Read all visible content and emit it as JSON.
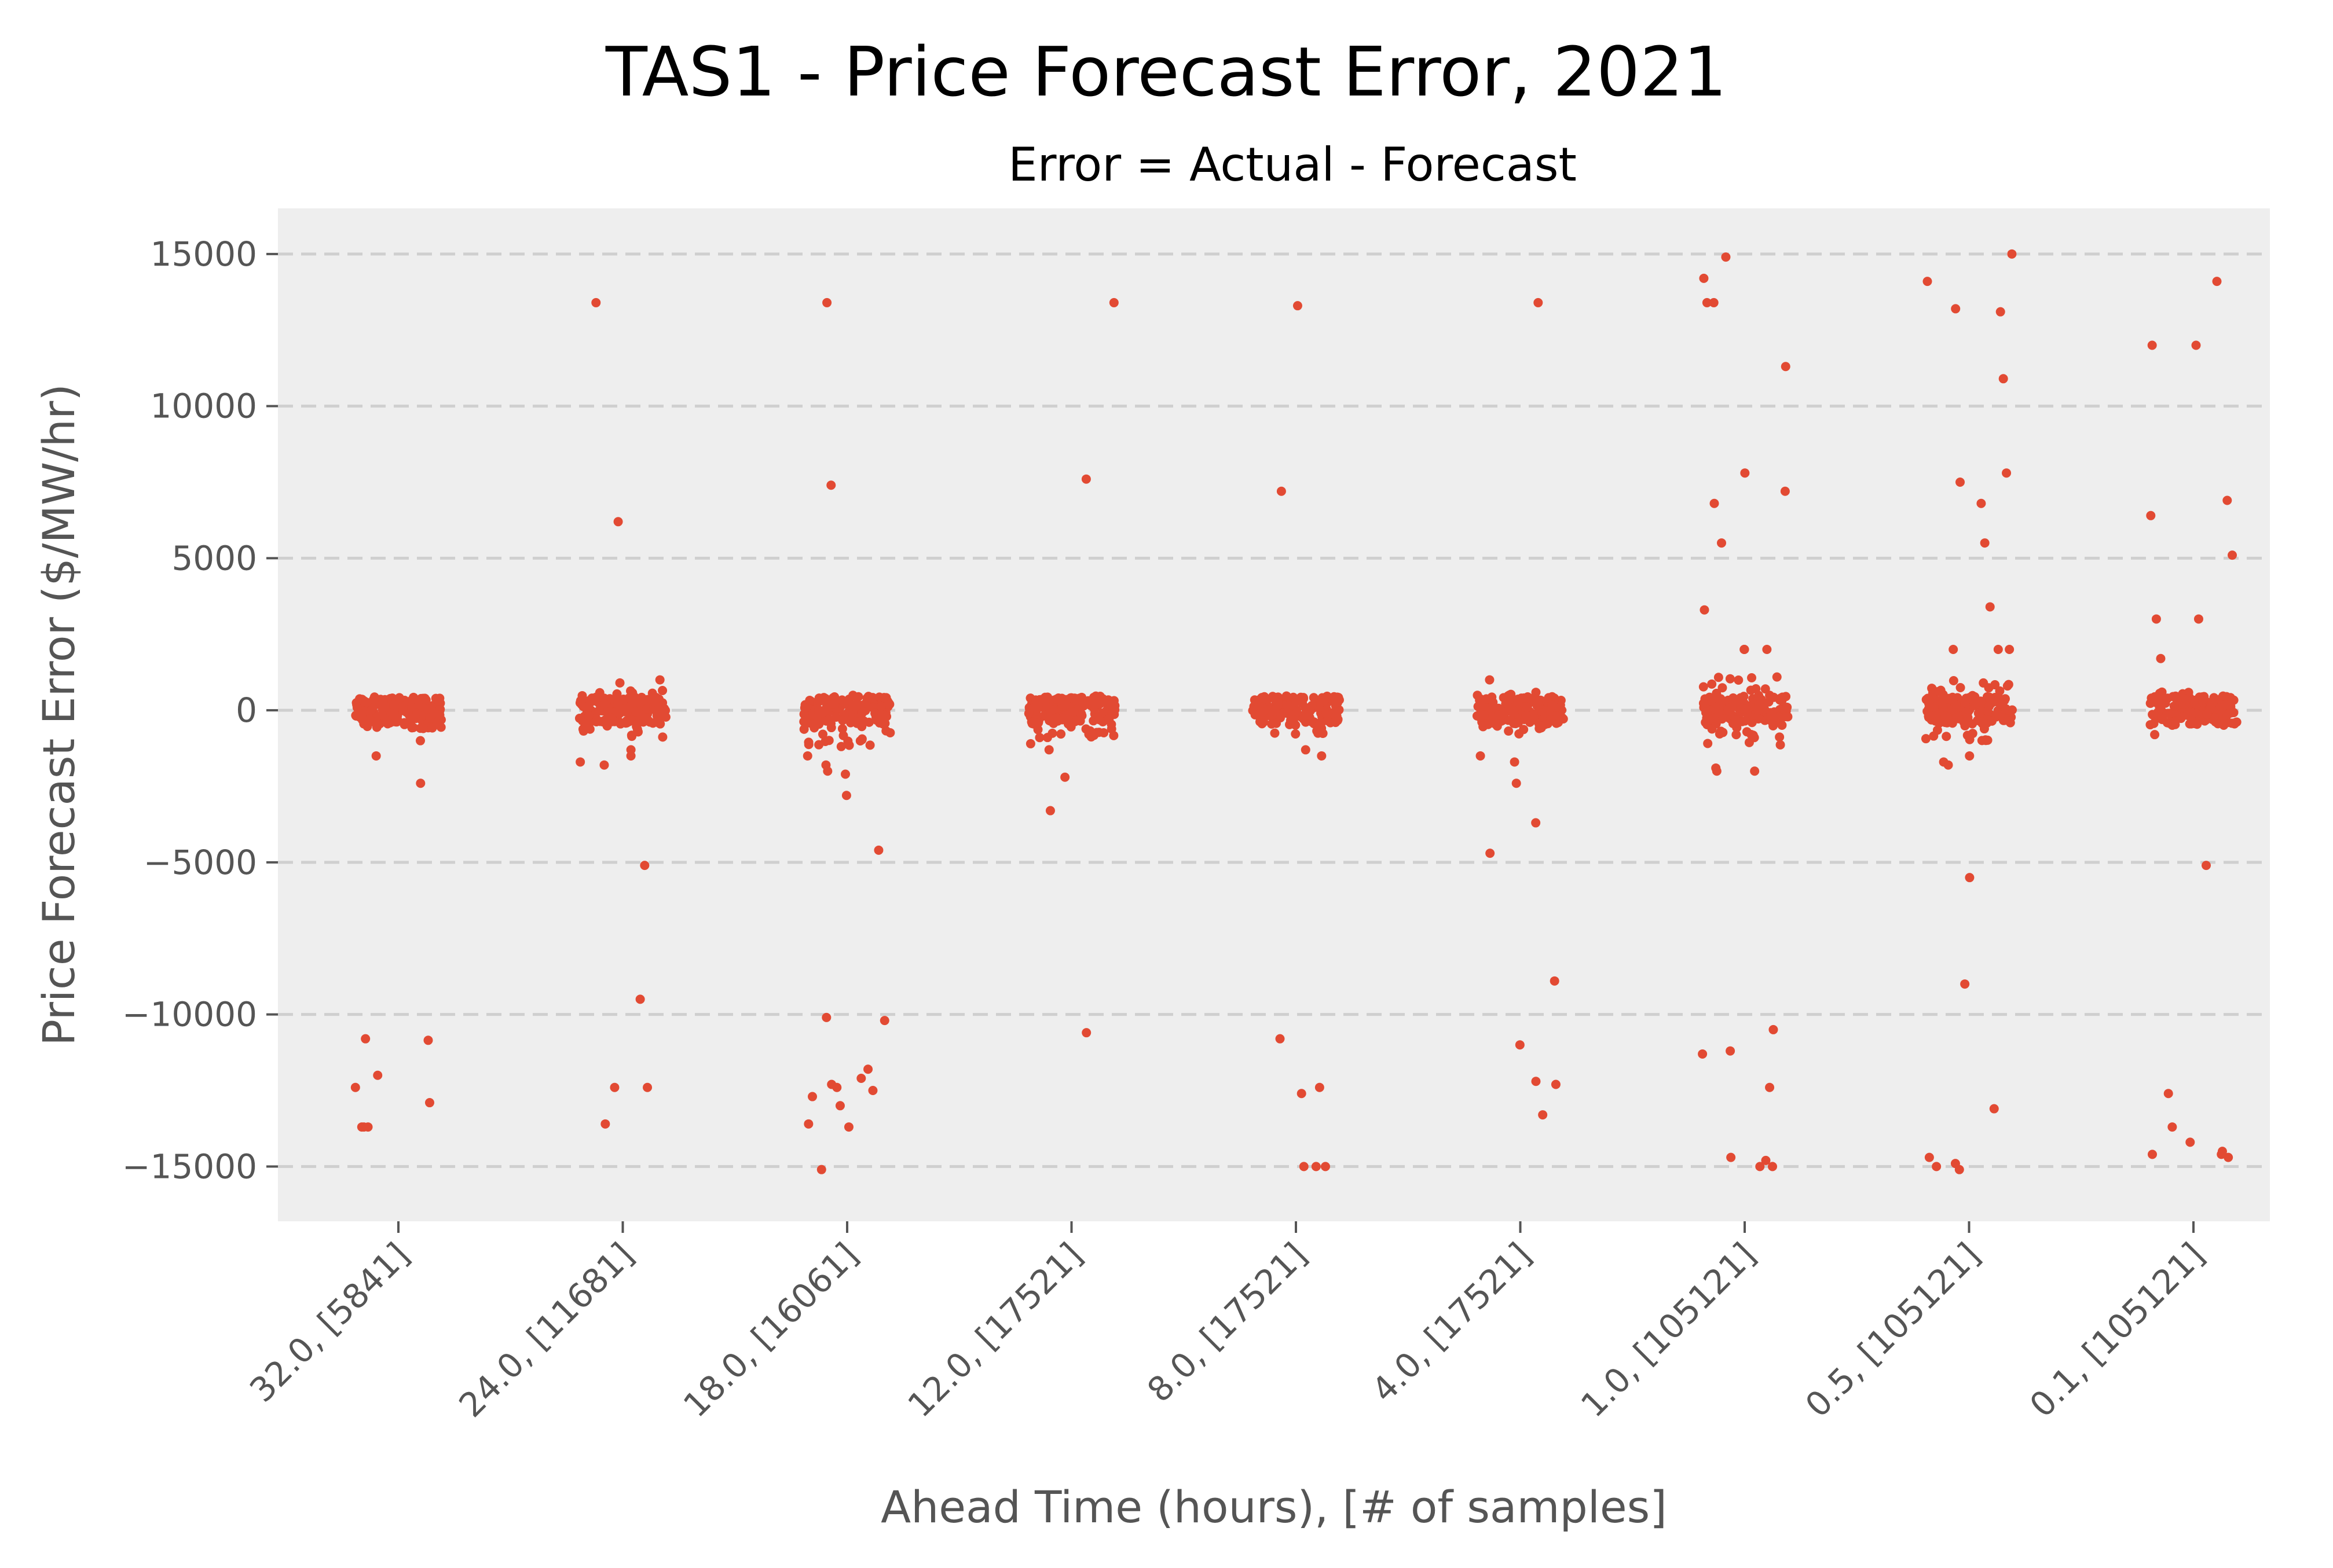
{
  "chart_data": {
    "type": "scatter",
    "title": "TAS1 - Price Forecast Error, 2021",
    "subtitle": "Error = Actual - Forecast",
    "xlabel": "Ahead Time (hours), [# of samples]",
    "ylabel": "Price Forecast Error ($/MW/hr)",
    "ylim": [
      -16800,
      16500
    ],
    "yticks": [
      15000,
      10000,
      5000,
      0,
      -5000,
      -10000,
      -15000
    ],
    "ytick_labels": [
      "15000",
      "10000",
      "5000",
      "0",
      "−5000",
      "−10000",
      "−15000"
    ],
    "grid": "horizontal dashed",
    "point_color": "#E24A33",
    "categories": [
      "32.0, [5841]",
      "24.0, [11681]",
      "18.0, [16061]",
      "12.0, [17521]",
      "8.0, [17521]",
      "4.0, [17521]",
      "1.0, [105121]",
      "0.5, [105121]",
      "0.1, [105121]"
    ],
    "series": [
      {
        "points": [
          [
            0,
            -10800
          ],
          [
            0,
            -10850
          ],
          [
            0,
            -12000
          ],
          [
            0,
            -12400
          ],
          [
            0,
            -12900
          ],
          [
            0,
            -13700
          ],
          [
            0,
            -13700
          ],
          [
            0,
            -13700
          ],
          [
            0,
            -1500
          ],
          [
            0,
            -2400
          ],
          [
            0,
            -1000
          ],
          [
            0,
            300
          ],
          [
            0,
            -600
          ],
          [
            1,
            13400
          ],
          [
            1,
            6200
          ],
          [
            1,
            -5100
          ],
          [
            1,
            -9500
          ],
          [
            1,
            -12400
          ],
          [
            1,
            -12400
          ],
          [
            1,
            -13600
          ],
          [
            1,
            900
          ],
          [
            1,
            1000
          ],
          [
            1,
            -1700
          ],
          [
            1,
            -1500
          ],
          [
            1,
            -1800
          ],
          [
            1,
            -1300
          ],
          [
            2,
            13400
          ],
          [
            2,
            7400
          ],
          [
            2,
            -4600
          ],
          [
            2,
            -2800
          ],
          [
            2,
            -10200
          ],
          [
            2,
            -10100
          ],
          [
            2,
            -11800
          ],
          [
            2,
            -12100
          ],
          [
            2,
            -12300
          ],
          [
            2,
            -12400
          ],
          [
            2,
            -12500
          ],
          [
            2,
            -12700
          ],
          [
            2,
            -13000
          ],
          [
            2,
            -13600
          ],
          [
            2,
            -13700
          ],
          [
            2,
            -15100
          ],
          [
            2,
            -2000
          ],
          [
            2,
            -1800
          ],
          [
            2,
            -1500
          ],
          [
            2,
            -2100
          ],
          [
            3,
            13400
          ],
          [
            3,
            7600
          ],
          [
            3,
            -3300
          ],
          [
            3,
            -10600
          ],
          [
            3,
            -2200
          ],
          [
            3,
            -1300
          ],
          [
            3,
            -1100
          ],
          [
            4,
            13300
          ],
          [
            4,
            7200
          ],
          [
            4,
            -10800
          ],
          [
            4,
            -12400
          ],
          [
            4,
            -12600
          ],
          [
            4,
            -15000
          ],
          [
            4,
            -15000
          ],
          [
            4,
            -15000
          ],
          [
            4,
            -1500
          ],
          [
            4,
            -1300
          ],
          [
            5,
            13400
          ],
          [
            5,
            1000
          ],
          [
            5,
            -2400
          ],
          [
            5,
            -3700
          ],
          [
            5,
            -4700
          ],
          [
            5,
            -8900
          ],
          [
            5,
            -11000
          ],
          [
            5,
            -12200
          ],
          [
            5,
            -12300
          ],
          [
            5,
            -13300
          ],
          [
            5,
            -1700
          ],
          [
            5,
            -1500
          ],
          [
            6,
            14900
          ],
          [
            6,
            14200
          ],
          [
            6,
            13400
          ],
          [
            6,
            13400
          ],
          [
            6,
            11300
          ],
          [
            6,
            7800
          ],
          [
            6,
            7200
          ],
          [
            6,
            6800
          ],
          [
            6,
            5500
          ],
          [
            6,
            3300
          ],
          [
            6,
            2000
          ],
          [
            6,
            2000
          ],
          [
            6,
            2000
          ],
          [
            6,
            -10500
          ],
          [
            6,
            -11200
          ],
          [
            6,
            -11300
          ],
          [
            6,
            -12400
          ],
          [
            6,
            -14700
          ],
          [
            6,
            -14800
          ],
          [
            6,
            -15000
          ],
          [
            6,
            -15000
          ],
          [
            6,
            -2000
          ],
          [
            6,
            -1900
          ],
          [
            6,
            -2000
          ],
          [
            7,
            15000
          ],
          [
            7,
            14100
          ],
          [
            7,
            13200
          ],
          [
            7,
            13100
          ],
          [
            7,
            10900
          ],
          [
            7,
            7800
          ],
          [
            7,
            7500
          ],
          [
            7,
            6800
          ],
          [
            7,
            5500
          ],
          [
            7,
            3400
          ],
          [
            7,
            2000
          ],
          [
            7,
            2000
          ],
          [
            7,
            2000
          ],
          [
            7,
            -5500
          ],
          [
            7,
            -9000
          ],
          [
            7,
            -13100
          ],
          [
            7,
            -14700
          ],
          [
            7,
            -14900
          ],
          [
            7,
            -15000
          ],
          [
            7,
            -15100
          ],
          [
            7,
            -1500
          ],
          [
            7,
            -1700
          ],
          [
            7,
            -1800
          ],
          [
            8,
            14100
          ],
          [
            8,
            12000
          ],
          [
            8,
            12000
          ],
          [
            8,
            6900
          ],
          [
            8,
            6400
          ],
          [
            8,
            5100
          ],
          [
            8,
            3000
          ],
          [
            8,
            3000
          ],
          [
            8,
            1700
          ],
          [
            8,
            -5100
          ],
          [
            8,
            -12600
          ],
          [
            8,
            -13700
          ],
          [
            8,
            -14200
          ],
          [
            8,
            -14500
          ],
          [
            8,
            -14600
          ],
          [
            8,
            -14600
          ],
          [
            8,
            -14700
          ],
          [
            8,
            -800
          ]
        ]
      }
    ],
    "core_spread": [
      [
        -600,
        400
      ],
      [
        -900,
        700
      ],
      [
        -1200,
        500
      ],
      [
        -900,
        500
      ],
      [
        -800,
        500
      ],
      [
        -800,
        600
      ],
      [
        -1200,
        1100
      ],
      [
        -1000,
        1000
      ],
      [
        -500,
        600
      ]
    ]
  }
}
